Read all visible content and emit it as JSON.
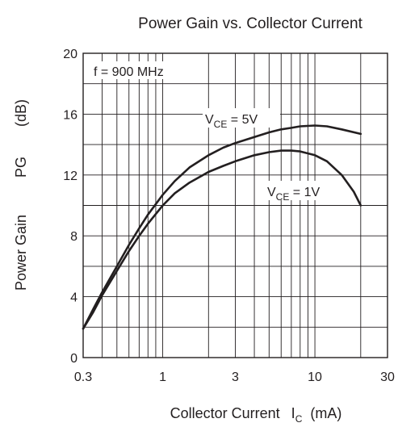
{
  "chart_data": {
    "type": "line",
    "title": "Power Gain vs. Collector Current",
    "xlabel_main": "Collector Current",
    "xlabel_symbol": "I",
    "xlabel_symbol_sub": "C",
    "xlabel_unit": "(mA)",
    "ylabel_main": "Power Gain",
    "ylabel_symbol": "PG",
    "ylabel_unit": "(dB)",
    "x_scale": "log",
    "xlim": [
      0.3,
      30
    ],
    "ylim": [
      0,
      20
    ],
    "x_ticks": [
      0.3,
      1,
      3,
      10,
      30
    ],
    "x_tick_labels": [
      "0.3",
      "1",
      "3",
      "10",
      "30"
    ],
    "y_ticks": [
      0,
      4,
      8,
      12,
      16,
      20
    ],
    "y_tick_labels": [
      "0",
      "4",
      "8",
      "12",
      "16",
      "20"
    ],
    "grid": true,
    "annotations": {
      "condition": "f = 900 MHz"
    },
    "series": [
      {
        "name": "VCE = 5V",
        "label_parts": {
          "main": "V",
          "sub": "CE",
          "rest": " = 5V"
        },
        "x": [
          0.3,
          0.35,
          0.4,
          0.5,
          0.6,
          0.7,
          0.8,
          1,
          1.2,
          1.5,
          2,
          2.5,
          3,
          4,
          5,
          6,
          7,
          8,
          10,
          12,
          15,
          20
        ],
        "y": [
          1.9,
          3.2,
          4.3,
          6.0,
          7.4,
          8.5,
          9.4,
          10.7,
          11.6,
          12.5,
          13.3,
          13.8,
          14.1,
          14.5,
          14.8,
          15.0,
          15.1,
          15.2,
          15.25,
          15.2,
          15.0,
          14.7
        ]
      },
      {
        "name": "VCE = 1V",
        "label_parts": {
          "main": "V",
          "sub": "CE",
          "rest": " = 1V"
        },
        "x": [
          0.3,
          0.35,
          0.4,
          0.5,
          0.6,
          0.7,
          0.8,
          1,
          1.2,
          1.5,
          2,
          2.5,
          3,
          4,
          5,
          6,
          7,
          8,
          10,
          12,
          15,
          18,
          20
        ],
        "y": [
          1.9,
          3.0,
          4.1,
          5.7,
          7.0,
          8.0,
          8.8,
          10.0,
          10.8,
          11.5,
          12.2,
          12.6,
          12.9,
          13.3,
          13.5,
          13.6,
          13.6,
          13.55,
          13.3,
          12.9,
          12.0,
          10.9,
          10.0
        ]
      }
    ]
  }
}
